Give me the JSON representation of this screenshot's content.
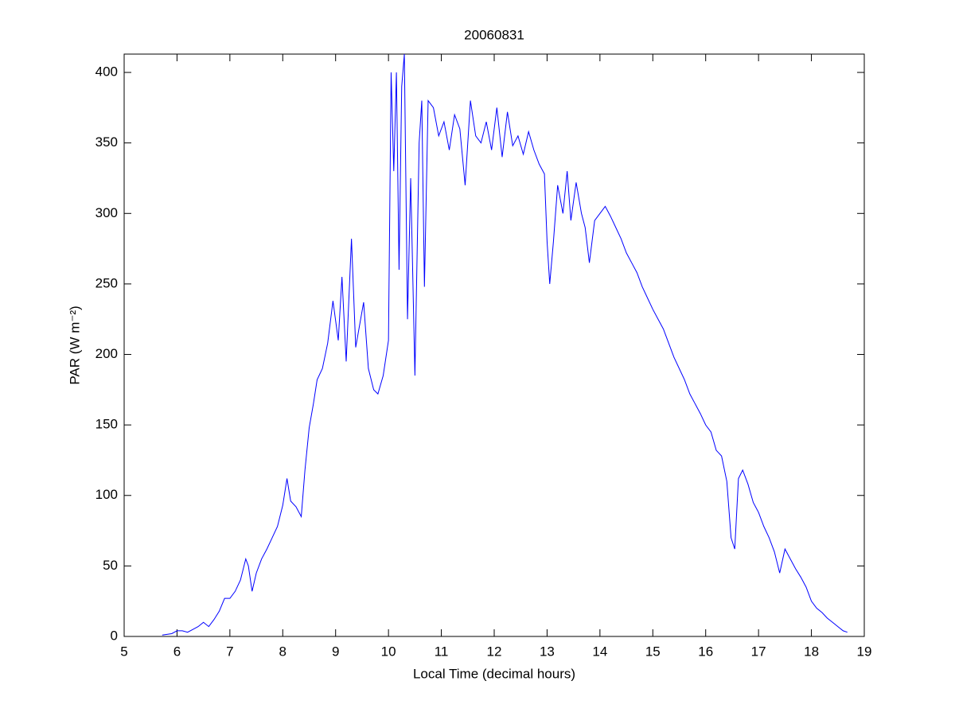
{
  "chart_data": {
    "type": "line",
    "title": "20060831",
    "x_label": "Local Time (decimal hours)",
    "y_label": "PAR (W m⁻²)",
    "x": [
      5.72,
      5.9,
      6.0,
      6.1,
      6.2,
      6.3,
      6.4,
      6.5,
      6.6,
      6.7,
      6.8,
      6.9,
      7.0,
      7.1,
      7.2,
      7.3,
      7.35,
      7.42,
      7.5,
      7.6,
      7.7,
      7.8,
      7.9,
      8.0,
      8.08,
      8.15,
      8.25,
      8.35,
      8.42,
      8.5,
      8.58,
      8.65,
      8.75,
      8.85,
      8.95,
      9.05,
      9.12,
      9.2,
      9.3,
      9.38,
      9.45,
      9.53,
      9.62,
      9.72,
      9.8,
      9.9,
      10.0,
      10.05,
      10.1,
      10.15,
      10.2,
      10.25,
      10.3,
      10.36,
      10.42,
      10.5,
      10.58,
      10.63,
      10.68,
      10.75,
      10.85,
      10.95,
      11.05,
      11.15,
      11.25,
      11.35,
      11.45,
      11.55,
      11.65,
      11.75,
      11.85,
      11.95,
      12.05,
      12.15,
      12.25,
      12.35,
      12.45,
      12.55,
      12.65,
      12.75,
      12.85,
      12.95,
      13.0,
      13.05,
      13.12,
      13.2,
      13.3,
      13.38,
      13.45,
      13.55,
      13.65,
      13.72,
      13.8,
      13.9,
      14.0,
      14.1,
      14.2,
      14.3,
      14.4,
      14.5,
      14.6,
      14.7,
      14.8,
      14.9,
      15.0,
      15.1,
      15.2,
      15.3,
      15.4,
      15.5,
      15.6,
      15.7,
      15.8,
      15.9,
      16.0,
      16.1,
      16.2,
      16.3,
      16.4,
      16.48,
      16.55,
      16.62,
      16.7,
      16.8,
      16.9,
      17.0,
      17.1,
      17.2,
      17.3,
      17.4,
      17.5,
      17.6,
      17.7,
      17.8,
      17.9,
      18.0,
      18.1,
      18.2,
      18.3,
      18.4,
      18.5,
      18.6,
      18.68
    ],
    "series": [
      {
        "name": "PAR",
        "color": "#0000ff",
        "values": [
          1,
          2,
          4,
          4,
          3,
          5,
          7,
          10,
          7,
          12,
          18,
          27,
          27,
          32,
          40,
          55,
          50,
          32,
          45,
          55,
          62,
          70,
          78,
          93,
          112,
          96,
          92,
          85,
          118,
          148,
          165,
          182,
          190,
          208,
          238,
          210,
          255,
          195,
          282,
          205,
          220,
          237,
          190,
          175,
          172,
          185,
          210,
          400,
          330,
          400,
          260,
          390,
          413,
          225,
          325,
          185,
          350,
          380,
          248,
          380,
          375,
          355,
          365,
          345,
          370,
          360,
          320,
          380,
          355,
          350,
          365,
          345,
          375,
          340,
          372,
          348,
          355,
          342,
          358,
          345,
          335,
          328,
          280,
          250,
          280,
          320,
          300,
          330,
          295,
          322,
          300,
          290,
          265,
          295,
          300,
          305,
          298,
          290,
          282,
          272,
          265,
          258,
          248,
          240,
          232,
          225,
          218,
          208,
          198,
          190,
          182,
          172,
          165,
          158,
          150,
          145,
          132,
          128,
          110,
          70,
          62,
          112,
          118,
          108,
          95,
          88,
          78,
          70,
          60,
          45,
          62,
          55,
          48,
          42,
          35,
          25,
          20,
          17,
          13,
          10,
          7,
          4,
          3
        ]
      }
    ],
    "xlim": [
      5,
      19
    ],
    "xticks": [
      5,
      6,
      7,
      8,
      9,
      10,
      11,
      12,
      13,
      14,
      15,
      16,
      17,
      18,
      19
    ],
    "ylim": [
      0,
      413
    ],
    "yticks": [
      0,
      50,
      100,
      150,
      200,
      250,
      300,
      350,
      400
    ],
    "grid": false
  }
}
